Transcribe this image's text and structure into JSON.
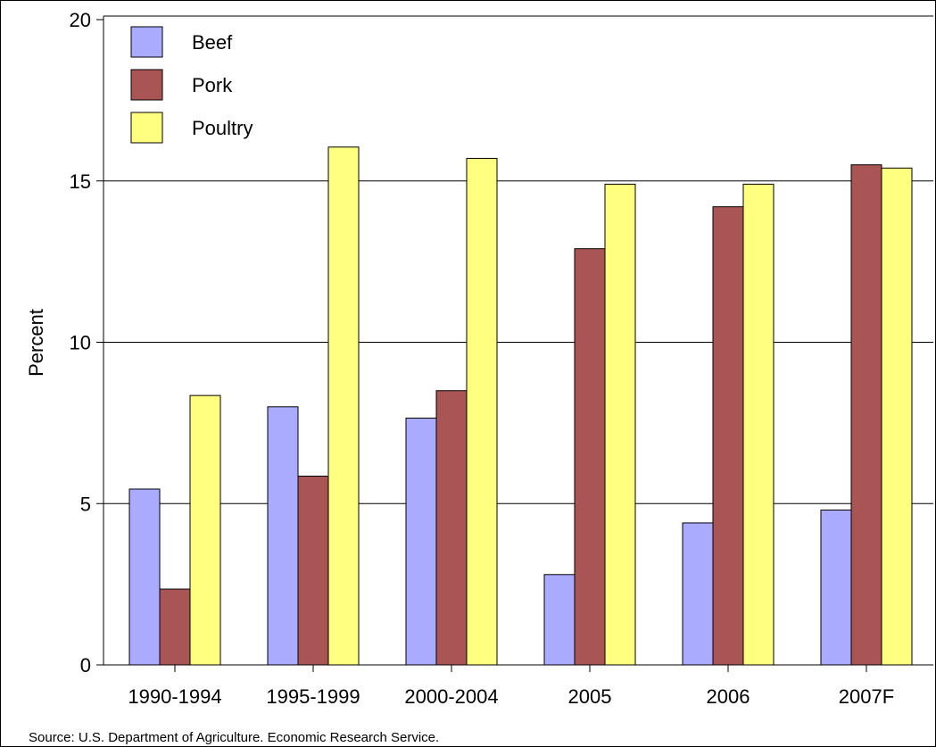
{
  "chart_data": {
    "type": "bar",
    "title": "",
    "xlabel": "",
    "ylabel": "Percent",
    "ylim": [
      0,
      20
    ],
    "yticks": [
      0,
      5,
      10,
      15,
      20
    ],
    "grid": true,
    "legend_position": "top-left",
    "categories": [
      "1990-1994",
      "1995-1999",
      "2000-2004",
      "2005",
      "2006",
      "2007F"
    ],
    "series": [
      {
        "name": "Beef",
        "color": "#aaaaff",
        "values": [
          5.45,
          8.0,
          7.65,
          2.8,
          4.4,
          4.8
        ]
      },
      {
        "name": "Pork",
        "color": "#aa5555",
        "values": [
          2.35,
          5.85,
          8.5,
          12.9,
          14.2,
          15.5
        ]
      },
      {
        "name": "Poultry",
        "color": "#ffff80",
        "values": [
          8.35,
          16.05,
          15.7,
          14.9,
          14.9,
          15.4
        ]
      }
    ]
  },
  "source": "Source: U.S. Department of Agriculture.  Economic Research Service."
}
